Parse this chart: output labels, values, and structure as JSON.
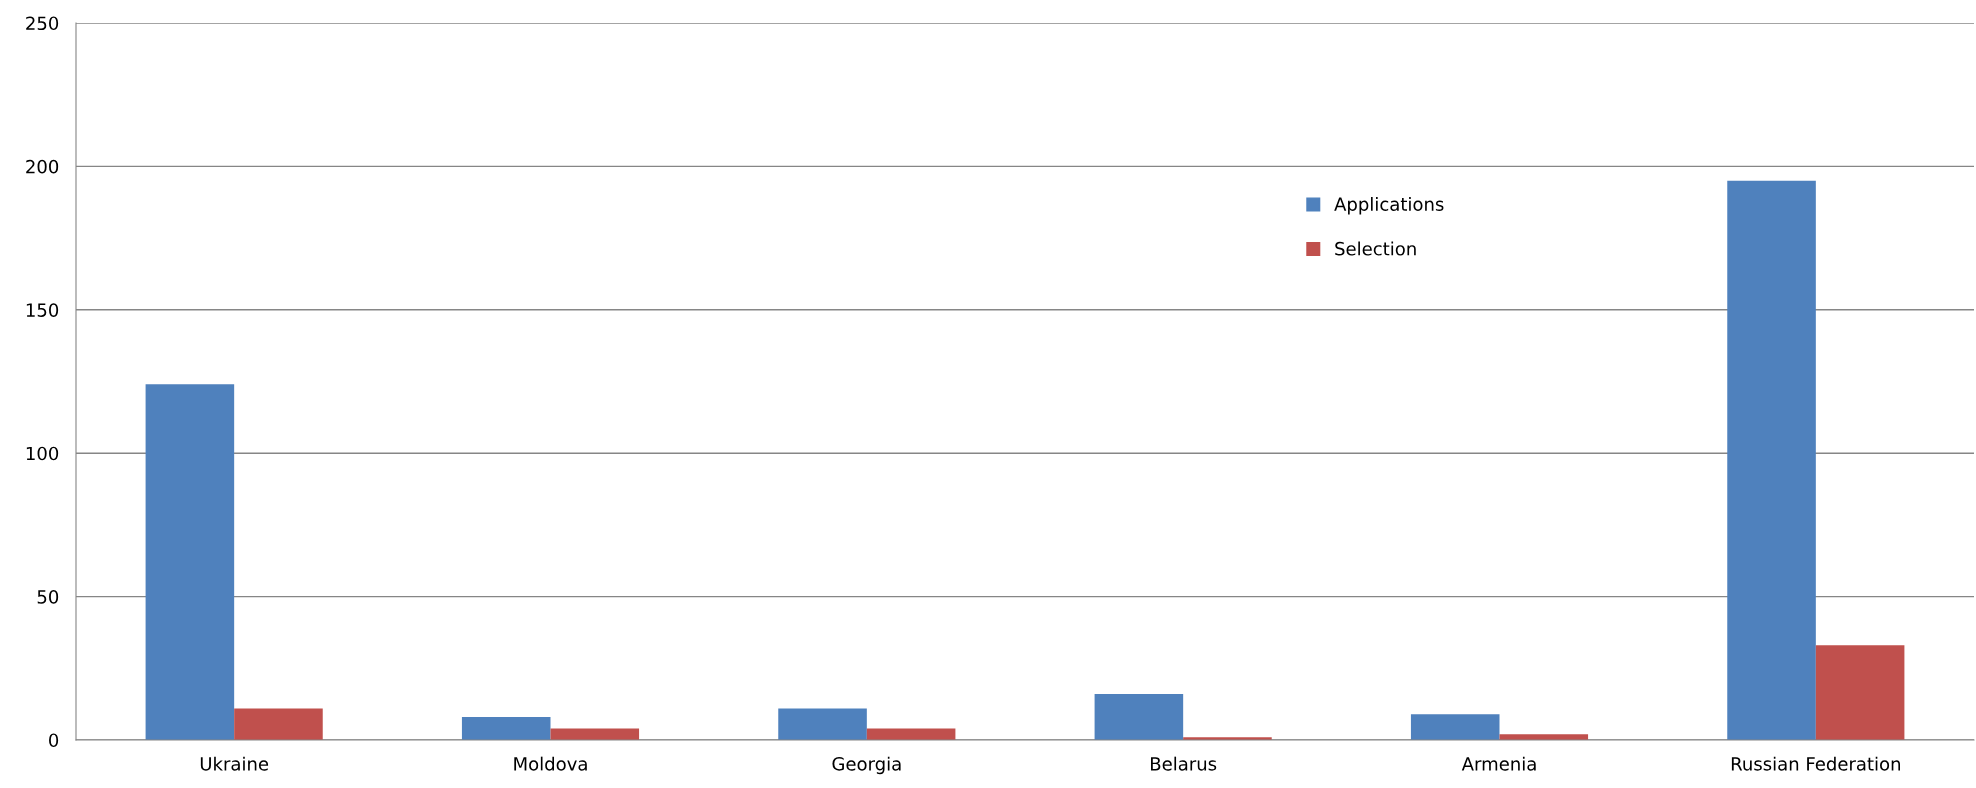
{
  "chart_data": {
    "type": "bar",
    "categories": [
      "Ukraine",
      "Moldova",
      "Georgia",
      "Belarus",
      "Armenia",
      "Russian Federation"
    ],
    "series": [
      {
        "name": "Applications",
        "color": "#4f81bd",
        "values": [
          124,
          8,
          11,
          16,
          9,
          195
        ]
      },
      {
        "name": "Selection",
        "color": "#c0504d",
        "values": [
          11,
          4,
          4,
          1,
          2,
          33
        ]
      }
    ],
    "ylim": [
      0,
      250
    ],
    "yticks": [
      0,
      50,
      100,
      150,
      200,
      250
    ],
    "grid": "y",
    "legend": "top right"
  }
}
